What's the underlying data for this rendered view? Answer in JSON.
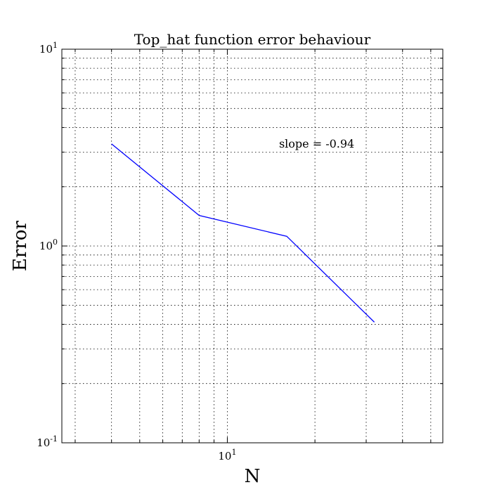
{
  "chart_data": {
    "type": "line",
    "title": "Top_hat function error behaviour",
    "xlabel": "N",
    "ylabel": "Error",
    "xscale": "log",
    "yscale": "log",
    "xlim": [
      2.7,
      55
    ],
    "ylim": [
      0.1,
      10
    ],
    "grid": true,
    "x_major_ticks": [
      {
        "value": 10,
        "base": "10",
        "exp": "1"
      }
    ],
    "y_major_ticks": [
      {
        "value": 0.1,
        "base": "10",
        "exp": "-1"
      },
      {
        "value": 1,
        "base": "10",
        "exp": "0"
      },
      {
        "value": 10,
        "base": "10",
        "exp": "1"
      }
    ],
    "x_minor_ticks": [
      3,
      4,
      5,
      6,
      7,
      8,
      9,
      20,
      30,
      40,
      50
    ],
    "y_minor_ticks": [
      0.2,
      0.3,
      0.4,
      0.5,
      0.6,
      0.7,
      0.8,
      0.9,
      2,
      3,
      4,
      5,
      6,
      7,
      8,
      9
    ],
    "series": [
      {
        "color": "#0000ff",
        "x": [
          4,
          8,
          16,
          32
        ],
        "y": [
          3.3,
          1.43,
          1.12,
          0.41
        ]
      }
    ],
    "annotations": [
      {
        "text": "slope = -0.94",
        "x": 16,
        "y": 3.3
      }
    ]
  }
}
